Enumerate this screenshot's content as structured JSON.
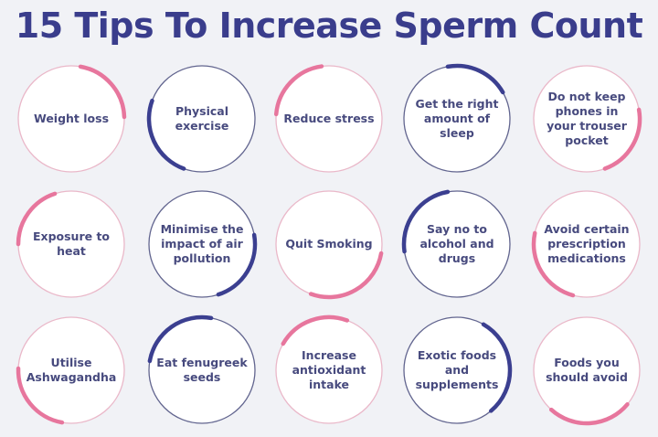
{
  "title": "15 Tips To Increase Sperm Count",
  "colors": {
    "background": "#f1f2f6",
    "title": "#3a3d8c",
    "blue": "#3b3f90",
    "pink": "#e7769d",
    "blue_ring": "#62658f",
    "pink_ring": "#eab8c9"
  },
  "tips": [
    {
      "label": "Weight loss",
      "theme": "pink"
    },
    {
      "label": "Physical exercise",
      "theme": "blue"
    },
    {
      "label": "Reduce stress",
      "theme": "pink"
    },
    {
      "label": "Get the right amount of sleep",
      "theme": "blue"
    },
    {
      "label": "Do not keep phones in your trouser pocket",
      "theme": "pink"
    },
    {
      "label": "Exposure to heat",
      "theme": "pink"
    },
    {
      "label": "Minimise the impact of air pollution",
      "theme": "blue"
    },
    {
      "label": "Quit Smoking",
      "theme": "pink"
    },
    {
      "label": "Say no to alcohol and drugs",
      "theme": "blue"
    },
    {
      "label": "Avoid certain prescription medications",
      "theme": "pink"
    },
    {
      "label": "Utilise Ashwagandha",
      "theme": "pink"
    },
    {
      "label": "Eat fenugreek seeds",
      "theme": "blue"
    },
    {
      "label": "Increase antioxidant intake",
      "theme": "pink"
    },
    {
      "label": "Exotic foods and supplements",
      "theme": "blue"
    },
    {
      "label": "Foods you should avoid",
      "theme": "pink"
    }
  ]
}
